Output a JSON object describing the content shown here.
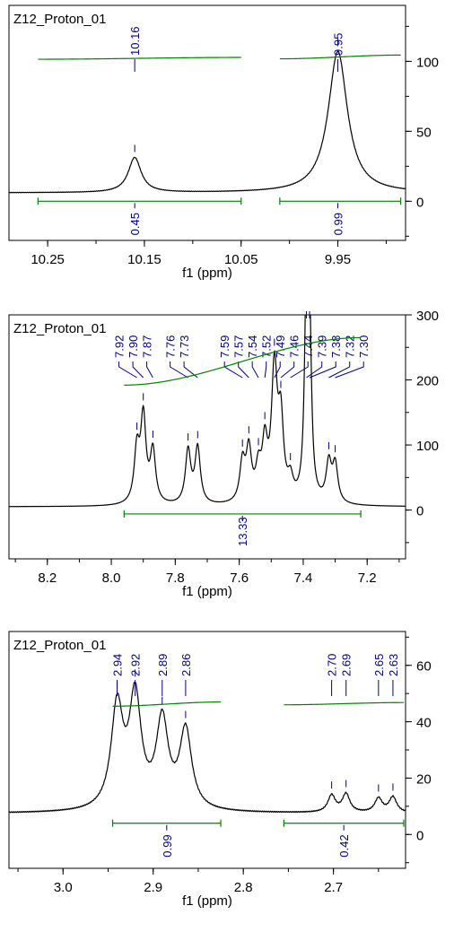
{
  "chart_data": [
    {
      "type": "line",
      "title": "Z12_Proton_01",
      "xlabel": "f1 (ppm)",
      "ylabel": "",
      "xlim": [
        10.29,
        9.88
      ],
      "ylim": [
        -28,
        140
      ],
      "x_ticks": [
        10.25,
        10.15,
        10.05,
        9.95
      ],
      "x_tick_labels": [
        "10.25",
        "10.15",
        "10.05",
        "9.95"
      ],
      "y_ticks": [
        0,
        50,
        100
      ],
      "y_tick_labels": [
        "0",
        "50",
        "100"
      ],
      "peaks": [
        {
          "ppm": 10.16,
          "label": "10.16",
          "height": 25,
          "width": 0.008
        },
        {
          "ppm": 9.95,
          "label": "9.95",
          "height": 101,
          "width": 0.012
        }
      ],
      "baseline": 6,
      "integrals": [
        {
          "from": 10.26,
          "to": 10.05,
          "value": "0.45",
          "curve_y": [
            101.5,
            102.8
          ]
        },
        {
          "from": 10.01,
          "to": 9.885,
          "value": "0.99",
          "curve_y": [
            101.8,
            104.5
          ]
        }
      ],
      "colors": {
        "spectrum": "#000000",
        "integral": "#008000",
        "peak_label": "#000080"
      }
    },
    {
      "type": "line",
      "title": "Z12_Proton_01",
      "xlabel": "f1 (ppm)",
      "ylabel": "",
      "xlim": [
        8.32,
        7.08
      ],
      "ylim": [
        -75,
        300
      ],
      "x_ticks": [
        8.2,
        8.0,
        7.8,
        7.6,
        7.4,
        7.2
      ],
      "x_tick_labels": [
        "8.2",
        "8.0",
        "7.8",
        "7.6",
        "7.4",
        "7.2"
      ],
      "y_ticks": [
        0,
        100,
        200,
        300
      ],
      "y_tick_labels": [
        "0",
        "100",
        "200",
        "300"
      ],
      "peak_labels": [
        "7.92",
        "7.90",
        "7.87",
        "7.76",
        "7.73",
        "7.59",
        "7.57",
        "7.54",
        "7.52",
        "7.49",
        "7.46",
        "7.44",
        "7.39",
        "7.38",
        "7.32",
        "7.30"
      ],
      "peaks": [
        {
          "ppm": 7.92,
          "height": 80,
          "width": 0.01
        },
        {
          "ppm": 7.9,
          "height": 130,
          "width": 0.01
        },
        {
          "ppm": 7.87,
          "height": 80,
          "width": 0.01
        },
        {
          "ppm": 7.76,
          "height": 82,
          "width": 0.01
        },
        {
          "ppm": 7.73,
          "height": 86,
          "width": 0.01
        },
        {
          "ppm": 7.59,
          "height": 60,
          "width": 0.01
        },
        {
          "ppm": 7.57,
          "height": 78,
          "width": 0.01
        },
        {
          "ppm": 7.54,
          "height": 46,
          "width": 0.01
        },
        {
          "ppm": 7.52,
          "height": 82,
          "width": 0.01
        },
        {
          "ppm": 7.49,
          "height": 200,
          "width": 0.011
        },
        {
          "ppm": 7.47,
          "height": 115,
          "width": 0.01
        },
        {
          "ppm": 7.44,
          "height": 30,
          "width": 0.01
        },
        {
          "ppm": 7.39,
          "height": 305,
          "width": 0.007
        },
        {
          "ppm": 7.38,
          "height": 240,
          "width": 0.007
        },
        {
          "ppm": 7.32,
          "height": 60,
          "width": 0.01
        },
        {
          "ppm": 7.3,
          "height": 58,
          "width": 0.01
        }
      ],
      "baseline": 5,
      "integrals": [
        {
          "from": 7.96,
          "to": 7.22,
          "value": "13.33",
          "curve_y": [
            192,
            265
          ]
        }
      ],
      "colors": {
        "spectrum": "#000000",
        "integral": "#008000",
        "peak_label": "#000080"
      }
    },
    {
      "type": "line",
      "title": "Z12_Proton_01",
      "xlabel": "f1 (ppm)",
      "ylabel": "",
      "xlim": [
        3.06,
        2.62
      ],
      "ylim": [
        -12,
        72
      ],
      "x_ticks": [
        3.0,
        2.9,
        2.8,
        2.7
      ],
      "x_tick_labels": [
        "3.0",
        "2.9",
        "2.8",
        "2.7"
      ],
      "y_ticks": [
        0,
        20,
        40,
        60
      ],
      "y_tick_labels": [
        "0",
        "20",
        "40",
        "60"
      ],
      "peak_labels": [
        "2.94",
        "2.92",
        "2.89",
        "2.86",
        "2.70",
        "2.69",
        "2.65",
        "2.63"
      ],
      "peaks": [
        {
          "ppm": 2.94,
          "height": 36,
          "width": 0.008
        },
        {
          "ppm": 2.92,
          "height": 39,
          "width": 0.008
        },
        {
          "ppm": 2.89,
          "height": 31,
          "width": 0.008
        },
        {
          "ppm": 2.864,
          "height": 28,
          "width": 0.008
        },
        {
          "ppm": 2.702,
          "height": 6,
          "width": 0.005
        },
        {
          "ppm": 2.686,
          "height": 6.5,
          "width": 0.005
        },
        {
          "ppm": 2.65,
          "height": 5,
          "width": 0.005
        },
        {
          "ppm": 2.634,
          "height": 5.5,
          "width": 0.005
        }
      ],
      "baseline": 7.5,
      "integrals": [
        {
          "from": 2.945,
          "to": 2.825,
          "value": "0.99",
          "curve_y": [
            45.5,
            47
          ]
        },
        {
          "from": 2.755,
          "to": 2.62,
          "value": "0.42",
          "curve_y": [
            46,
            46.8
          ]
        }
      ],
      "colors": {
        "spectrum": "#000000",
        "integral": "#008000",
        "peak_label": "#000080"
      }
    }
  ]
}
